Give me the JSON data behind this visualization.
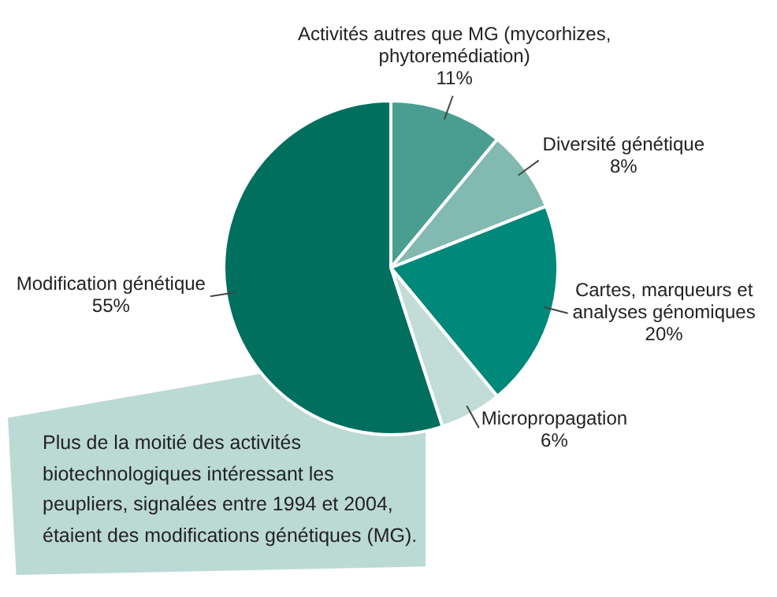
{
  "chart_data": {
    "type": "pie",
    "categories": [
      "Activités autres que MG (mycorhizes, phytoremédiation)",
      "Diversité génétique",
      "Cartes, marqueurs et analyses génomiques",
      "Micropropagation",
      "Modification génétique"
    ],
    "values": [
      11,
      8,
      20,
      6,
      55
    ],
    "value_labels": [
      "11%",
      "8%",
      "20%",
      "6%",
      "55%"
    ],
    "colors": [
      "#4a9e91",
      "#82b9b0",
      "#00887a",
      "#c2ddd8",
      "#006f5e"
    ],
    "annotations": [
      "Plus de la moitié des activités biotechnologiques intéressant les peupliers, signalées entre 1994 et 2004, étaient des modifications génétiques (MG)."
    ],
    "legend": false
  }
}
